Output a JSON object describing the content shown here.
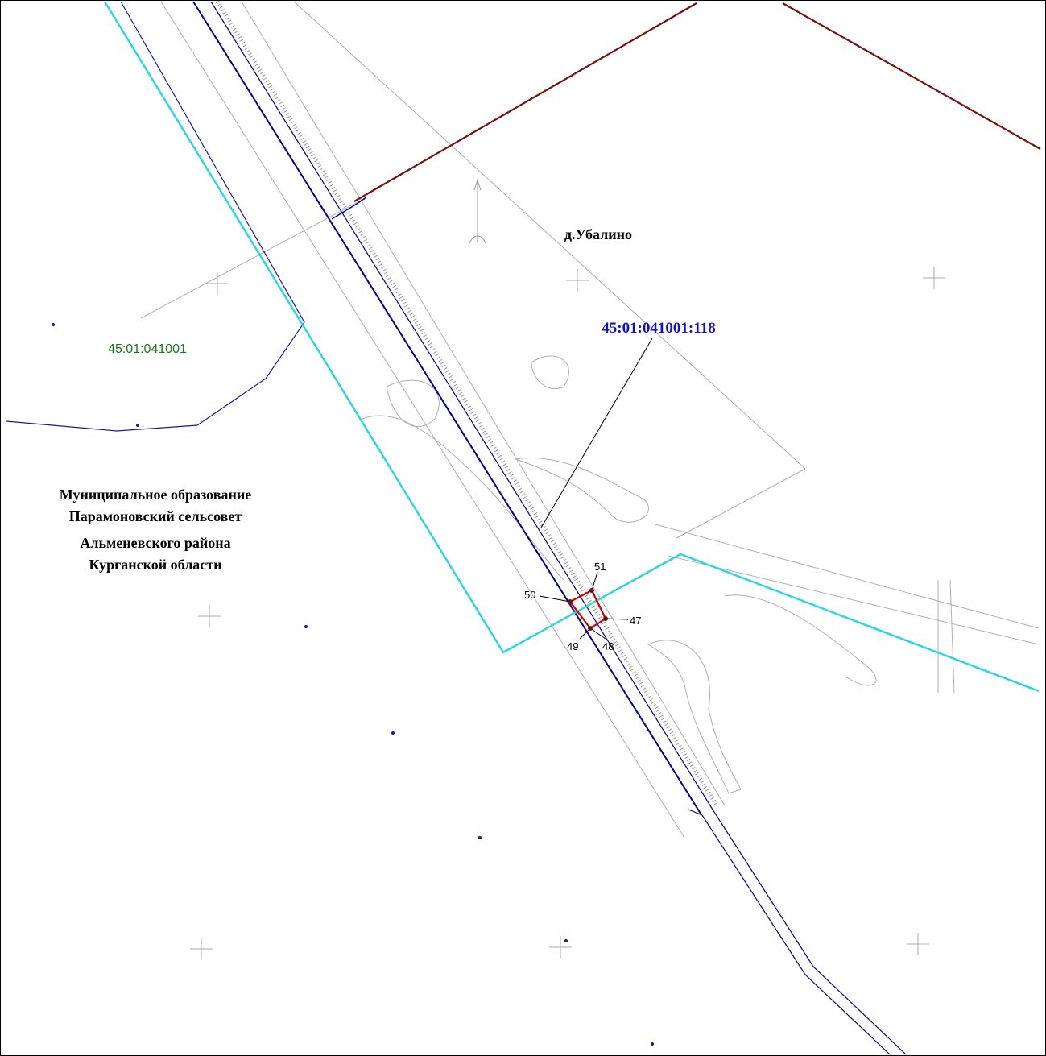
{
  "map": {
    "settlement": "д.Убалино",
    "parcel_number": "45:01:041001:118",
    "cadastral_block": "45:01:041001",
    "municipality": [
      "Муниципальное образование",
      "Парамоновский сельсовет",
      "Альменевского района",
      "Курганской области"
    ],
    "points": [
      "47",
      "48",
      "49",
      "50",
      "51"
    ]
  }
}
